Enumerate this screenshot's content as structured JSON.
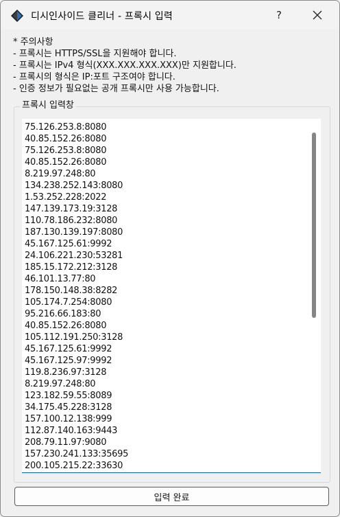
{
  "window": {
    "title": "디시인사이드 클리너 - 프록시 입력",
    "help_glyph": "?",
    "close_glyph": "✕",
    "icon": "diamond-app-icon"
  },
  "notes": [
    "* 주의사항",
    "- 프록시는 HTTPS/SSL을 지원해야 합니다.",
    "- 프록시는 IPv4 형식(XXX.XXX.XXX.XXX)만 지원합니다.",
    "- 프록시의 형식은 IP:포트 구조여야 합니다.",
    "- 인증 정보가 필요없는 공개 프록시만 사용 가능합니다."
  ],
  "proxy_group": {
    "title": "프록시 입력창",
    "lines": [
      "75.126.253.8:8080",
      "40.85.152.26:8080",
      "75.126.253.8:8080",
      "40.85.152.26:8080",
      "8.219.97.248:80",
      "134.238.252.143:8080",
      "1.53.252.228:2022",
      "147.139.173.19:3128",
      "110.78.186.232:8080",
      "187.130.139.197:8080",
      "45.167.125.61:9992",
      "24.106.221.230:53281",
      "185.15.172.212:3128",
      "46.101.13.77:80",
      "178.150.148.38:8282",
      "105.174.7.254:8080",
      "95.216.66.183:80",
      "40.85.152.26:8080",
      "105.112.191.250:3128",
      "45.167.125.61:9992",
      "45.167.125.97:9992",
      "119.8.236.97:3128",
      "8.219.97.248:80",
      "123.182.59.55:8089",
      "34.175.45.228:3128",
      "157.100.12.138:999",
      "112.87.140.163:9443",
      "208.79.11.97:9080",
      "157.230.241.133:35695",
      "200.105.215.22:33630"
    ]
  },
  "submit_label": "입력 완료",
  "colors": {
    "focus_underline": "#005fb8",
    "scrollbar_thumb": "#868686",
    "icon_blue": "#2a6fb6"
  }
}
